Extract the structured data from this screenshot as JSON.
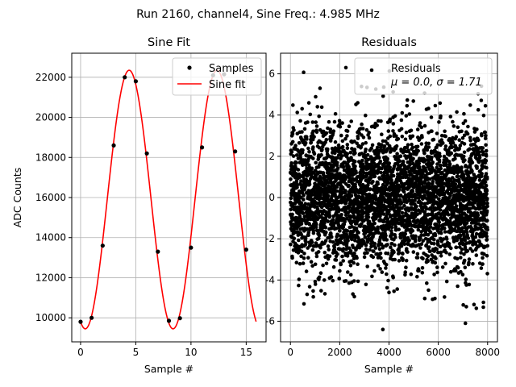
{
  "suptitle": "Run 2160, channel4, Sine Freq.: 4.985 MHz",
  "chart_data": [
    {
      "type": "scatter+line",
      "title": "Sine Fit",
      "xlabel": "Sample #",
      "ylabel": "ADC Counts",
      "xlim": [
        -0.8,
        16.8
      ],
      "ylim": [
        8800,
        23200
      ],
      "xticks": [
        0,
        5,
        10,
        15
      ],
      "yticks": [
        10000,
        12000,
        14000,
        16000,
        18000,
        20000,
        22000
      ],
      "grid": true,
      "legend_position": "top-right",
      "series": [
        {
          "name": "Samples",
          "kind": "scatter",
          "color": "#000000",
          "x": [
            0,
            1,
            2,
            3,
            4,
            5,
            6,
            7,
            8,
            9,
            10,
            11,
            12,
            13,
            14,
            15
          ],
          "y": [
            9800,
            10000,
            13600,
            18600,
            22000,
            21800,
            18200,
            13300,
            9850,
            9980,
            13500,
            18500,
            22100,
            22150,
            18300,
            13400
          ]
        },
        {
          "name": "Sine fit",
          "kind": "line",
          "color": "#ff0000",
          "model": {
            "amplitude": 6450,
            "offset": 15900,
            "period": 7.95,
            "peak_at": 4.4,
            "x_start": 0,
            "x_end": 15.9
          }
        }
      ]
    },
    {
      "type": "scatter",
      "title": "Residuals",
      "xlabel": "Sample #",
      "ylabel": "",
      "xlim": [
        -400,
        8400
      ],
      "ylim": [
        -7.0,
        7.0
      ],
      "xticks": [
        0,
        2000,
        4000,
        6000,
        8000
      ],
      "yticks": [
        -6,
        -4,
        -2,
        0,
        2,
        4,
        6
      ],
      "grid": true,
      "legend_position": "top-right",
      "series": [
        {
          "name": "Residuals",
          "label_line2": "μ = 0.0, σ = 1.71",
          "color": "#000000",
          "n_points": 8000,
          "mean": 0.0,
          "sigma": 1.71,
          "x_range": [
            0,
            8000
          ],
          "notable_points": [
            {
              "x": 2250,
              "y": 6.3
            },
            {
              "x": 3750,
              "y": -6.4
            },
            {
              "x": 7100,
              "y": -6.1
            },
            {
              "x": 1200,
              "y": 5.3
            },
            {
              "x": 7750,
              "y": 5.4
            }
          ]
        }
      ]
    }
  ]
}
